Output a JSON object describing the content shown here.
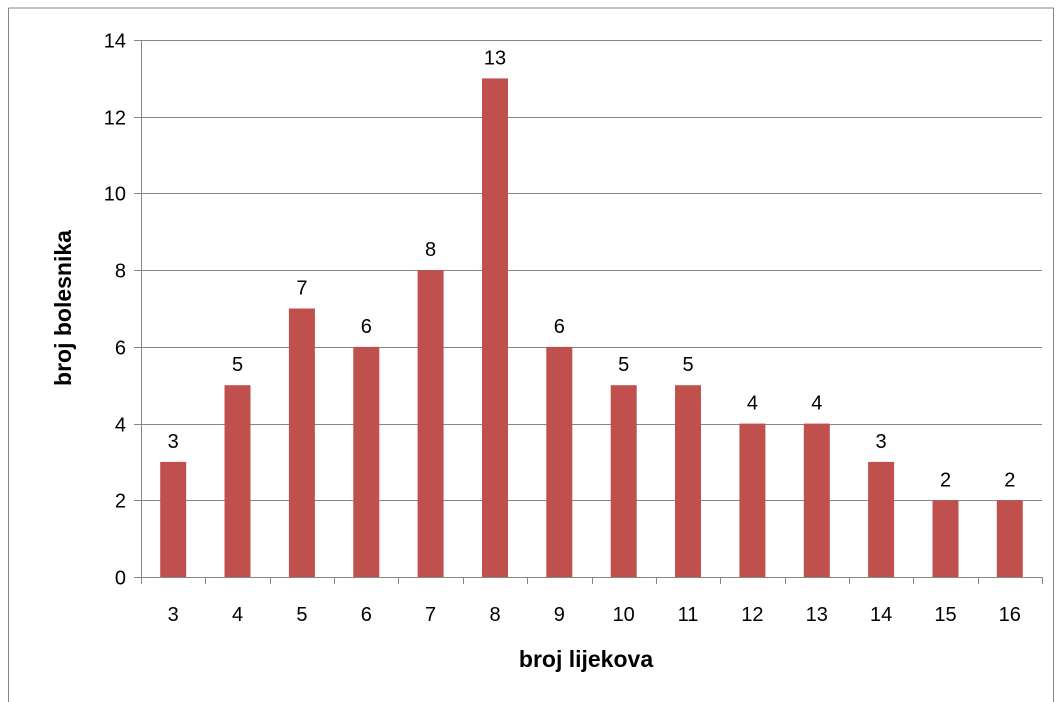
{
  "chart_data": {
    "type": "bar",
    "categories": [
      "3",
      "4",
      "5",
      "6",
      "7",
      "8",
      "9",
      "10",
      "11",
      "12",
      "13",
      "14",
      "15",
      "16"
    ],
    "values": [
      3,
      5,
      7,
      6,
      8,
      13,
      6,
      5,
      5,
      4,
      4,
      3,
      2,
      2
    ],
    "data_labels": [
      "3",
      "5",
      "7",
      "6",
      "8",
      "13",
      "6",
      "5",
      "5",
      "4",
      "4",
      "3",
      "2",
      "2"
    ],
    "xlabel": "broj lijekova",
    "ylabel": "broj bolesnika",
    "ylim": [
      0,
      14
    ],
    "y_ticks": [
      "0",
      "2",
      "4",
      "6",
      "8",
      "10",
      "12",
      "14"
    ],
    "grid": true,
    "legend": "none",
    "colors": {
      "bar": "#C0504D",
      "grid": "#868686",
      "axis": "#868686",
      "frame": "#868686"
    }
  }
}
